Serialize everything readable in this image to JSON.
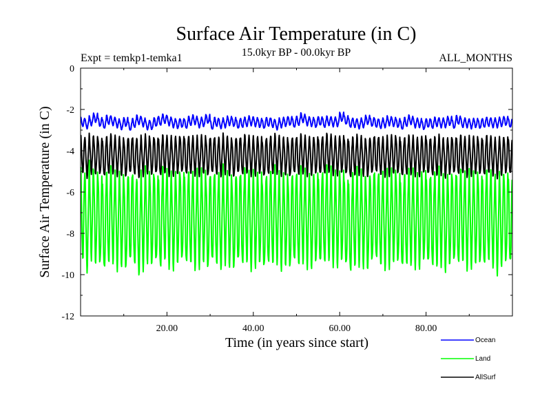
{
  "chart_data": {
    "type": "line",
    "title": "Surface Air Temperature (in C)",
    "subtitle_left": "Expt = temkp1-temka1",
    "subtitle_center": "15.0kyr BP - 00.0kyr BP",
    "subtitle_right": "ALL_MONTHS",
    "xlabel": "Time (in years since start)",
    "ylabel": "Surface Air Temperature (in C)",
    "xlim": [
      0,
      100
    ],
    "ylim": [
      -12,
      0
    ],
    "xticks": [
      20,
      40,
      60,
      80
    ],
    "xtick_labels": [
      "20.00",
      "40.00",
      "60.00",
      "80.00"
    ],
    "yticks": [
      0,
      -2,
      -4,
      -6,
      -8,
      -10,
      -12
    ],
    "ytick_labels": [
      "0",
      "-2",
      "-4",
      "-6",
      "-8",
      "-10",
      "-12"
    ],
    "grid": false,
    "legend_position": "bottom-right, outside plot",
    "samples_per_year": 12,
    "series": [
      {
        "name": "Ocean",
        "color": "#0000ff",
        "mean": -2.65,
        "seasonal_amplitude": 0.22,
        "annual_anomaly": [
          0.05,
          -0.05,
          0.1,
          0.25,
          0.05,
          -0.05,
          0.15,
          0.1,
          0.0,
          -0.1,
          0.05,
          -0.15,
          0.0,
          0.15,
          0.05,
          -0.1,
          -0.1,
          0.05,
          0.1,
          0.2,
          0.1,
          0.0,
          -0.05,
          0.0,
          -0.05,
          0.1,
          0.15,
          0.0,
          0.05,
          0.2,
          -0.1,
          0.05,
          -0.05,
          0.0,
          0.1,
          0.05,
          -0.05,
          0.0,
          0.05,
          0.1,
          0.05,
          0.0,
          -0.05,
          0.05,
          0.0,
          -0.1,
          0.0,
          0.05,
          0.1,
          0.0,
          0.1,
          0.25,
          0.1,
          0.05,
          0.0,
          0.1,
          0.0,
          0.1,
          0.05,
          0.05,
          0.3,
          0.15,
          0.0,
          0.0,
          -0.05,
          0.0,
          0.15,
          0.05,
          0.0,
          -0.05,
          0.0,
          0.1,
          0.05,
          0.0,
          -0.1,
          0.05,
          0.15,
          0.0,
          0.0,
          -0.1,
          0.0,
          -0.05,
          0.05,
          0.0,
          0.0,
          0.1,
          -0.05,
          0.15,
          0.0,
          0.0,
          -0.05,
          0.0,
          -0.05,
          0.0,
          0.05,
          0.0,
          0.0,
          0.05,
          0.1,
          0.0
        ]
      },
      {
        "name": "Land",
        "color": "#00ff00",
        "mean": -7.3,
        "seasonal_amplitude": 2.2,
        "annual_anomaly": [
          0.3,
          -0.2,
          0.4,
          0.1,
          0.0,
          -0.3,
          0.1,
          0.2,
          -0.1,
          0.0,
          -0.2,
          0.1,
          0.0,
          -0.4,
          -0.1,
          0.2,
          0.0,
          0.1,
          -0.2,
          0.3,
          0.0,
          -0.1,
          0.1,
          0.2,
          0.0,
          0.1,
          -0.1,
          0.0,
          0.2,
          -0.2,
          0.1,
          0.0,
          -0.1,
          0.2,
          0.0,
          -0.2,
          0.1,
          0.0,
          0.2,
          -0.1,
          0.0,
          0.1,
          -0.2,
          0.0,
          0.1,
          0.2,
          -0.1,
          0.0,
          -0.2,
          0.1,
          0.0,
          0.2,
          0.0,
          -0.1,
          0.1,
          0.0,
          0.1,
          0.3,
          0.1,
          0.0,
          0.2,
          -0.1,
          -0.4,
          0.0,
          0.1,
          0.0,
          -0.2,
          0.1,
          0.2,
          0.0,
          -0.1,
          0.0,
          0.2,
          0.1,
          -0.2,
          0.0,
          0.1,
          0.0,
          -0.1,
          0.2,
          0.0,
          -0.1,
          0.0,
          0.1,
          -0.2,
          0.0,
          0.1,
          0.0,
          0.2,
          -0.1,
          0.0,
          0.1,
          0.0,
          -0.1,
          0.2,
          0.0,
          -0.3,
          0.0,
          0.1,
          0.0
        ]
      },
      {
        "name": "AllSurf",
        "color": "#000000",
        "mean": -4.25,
        "seasonal_amplitude": 0.9,
        "annual_anomaly": [
          0.1,
          -0.1,
          0.1,
          0.05,
          0.0,
          -0.1,
          0.05,
          0.1,
          0.0,
          0.0,
          -0.1,
          0.05,
          0.0,
          -0.1,
          0.0,
          0.1,
          0.0,
          0.05,
          -0.05,
          0.1,
          0.0,
          0.0,
          0.05,
          0.1,
          0.0,
          0.05,
          0.0,
          0.0,
          0.1,
          -0.05,
          0.05,
          0.0,
          -0.05,
          0.1,
          0.0,
          -0.1,
          0.05,
          0.0,
          0.1,
          0.0,
          0.0,
          0.05,
          -0.1,
          0.0,
          0.05,
          0.1,
          0.0,
          0.0,
          -0.1,
          0.05,
          0.0,
          0.1,
          0.0,
          0.0,
          0.05,
          0.0,
          0.05,
          0.15,
          0.05,
          0.0,
          0.1,
          0.0,
          -0.15,
          0.0,
          0.05,
          0.0,
          -0.1,
          0.05,
          0.1,
          0.0,
          -0.05,
          0.0,
          0.1,
          0.05,
          -0.1,
          0.0,
          0.05,
          0.0,
          -0.05,
          0.1,
          0.0,
          -0.05,
          0.0,
          0.05,
          -0.1,
          0.0,
          0.05,
          0.0,
          0.1,
          -0.05,
          0.0,
          0.05,
          0.0,
          -0.05,
          0.1,
          0.0,
          -0.1,
          0.0,
          0.05,
          0.0
        ]
      }
    ]
  }
}
